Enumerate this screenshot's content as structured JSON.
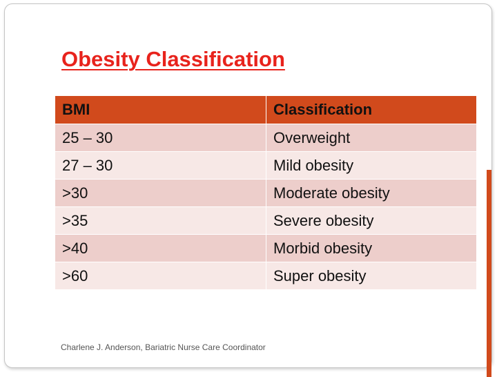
{
  "title": "Obesity Classification",
  "table": {
    "headers": [
      "BMI",
      "Classification"
    ],
    "rows": [
      [
        "25 – 30",
        "Overweight"
      ],
      [
        "27 – 30",
        "Mild obesity"
      ],
      [
        ">30",
        "Moderate obesity"
      ],
      [
        ">35",
        "Severe obesity"
      ],
      [
        ">40",
        "Morbid obesity"
      ],
      [
        ">60",
        "Super obesity"
      ]
    ]
  },
  "footer": "Charlene J. Anderson, Bariatric Nurse Care Coordinator",
  "colors": {
    "title": "#e8231c",
    "header_fill": "#d14a1c",
    "row_odd": "#edcecb",
    "row_even": "#f7e8e6"
  }
}
